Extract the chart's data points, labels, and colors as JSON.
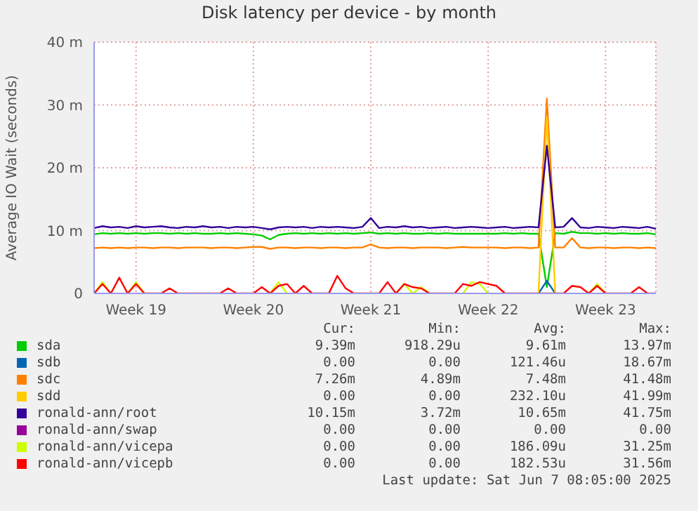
{
  "chart_data": {
    "type": "line",
    "title": "Disk latency per device - by month",
    "ylabel": "Average IO Wait (seconds)",
    "categories": [
      null,
      null,
      null,
      null,
      null,
      "Week 19",
      null,
      null,
      null,
      null,
      null,
      null,
      null,
      null,
      null,
      null,
      null,
      null,
      null,
      "Week 20",
      null,
      null,
      null,
      null,
      null,
      null,
      null,
      null,
      null,
      null,
      null,
      null,
      null,
      "Week 21",
      null,
      null,
      null,
      null,
      null,
      null,
      null,
      null,
      null,
      null,
      null,
      null,
      null,
      "Week 22",
      null,
      null,
      null,
      null,
      null,
      null,
      null,
      null,
      null,
      null,
      null,
      null,
      null,
      "Week 23",
      null,
      null,
      null,
      null,
      null,
      null
    ],
    "ylim": [
      0,
      40
    ],
    "yticks": [
      0,
      {
        "value": 10,
        "label": "10 m"
      },
      {
        "value": 20,
        "label": "20 m"
      },
      {
        "value": 30,
        "label": "30 m"
      },
      {
        "value": 40,
        "label": "40 m"
      }
    ],
    "grid": true,
    "legend": "bottom",
    "marker": "none",
    "line_style": "solid",
    "series": [
      {
        "name": "sda",
        "color": "#00cc00",
        "values": [
          9.4,
          9.6,
          9.5,
          9.6,
          9.5,
          9.6,
          9.5,
          9.6,
          9.6,
          9.5,
          9.6,
          9.5,
          9.6,
          9.5,
          9.5,
          9.6,
          9.5,
          9.6,
          9.5,
          9.4,
          9.2,
          8.6,
          9.3,
          9.5,
          9.6,
          9.5,
          9.6,
          9.5,
          9.6,
          9.5,
          9.6,
          9.5,
          9.6,
          9.7,
          9.5,
          9.6,
          9.5,
          9.6,
          9.5,
          9.5,
          9.6,
          9.5,
          9.6,
          9.5,
          9.5,
          9.5,
          9.5,
          9.5,
          9.5,
          9.6,
          9.5,
          9.6,
          9.5,
          9.5,
          1,
          9.6,
          9.5,
          9.8,
          9.6,
          9.6,
          9.5,
          9.6,
          9.5,
          9.6,
          9.5,
          9.5,
          9.6,
          9.4
        ]
      },
      {
        "name": "sdb",
        "color": "#0066b3",
        "values": [
          null,
          null,
          null,
          null,
          null,
          null,
          null,
          null,
          null,
          null,
          null,
          null,
          null,
          null,
          null,
          null,
          null,
          null,
          null,
          null,
          null,
          null,
          null,
          null,
          null,
          null,
          null,
          null,
          null,
          null,
          null,
          null,
          null,
          null,
          null,
          null,
          null,
          null,
          null,
          null,
          null,
          null,
          null,
          null,
          null,
          null,
          null,
          null,
          null,
          null,
          null,
          null,
          null,
          0,
          2,
          0,
          null,
          null,
          null,
          null,
          null,
          null,
          null,
          null,
          null,
          null,
          null,
          null
        ]
      },
      {
        "name": "sdc",
        "color": "#ff8000",
        "values": [
          7.2,
          7.3,
          7.2,
          7.3,
          7.2,
          7.3,
          7.3,
          7.2,
          7.3,
          7.3,
          7.2,
          7.3,
          7.3,
          7.3,
          7.2,
          7.3,
          7.3,
          7.2,
          7.3,
          7.4,
          7.4,
          7.1,
          7.3,
          7.3,
          7.2,
          7.3,
          7.3,
          7.2,
          7.3,
          7.3,
          7.2,
          7.3,
          7.3,
          7.8,
          7.3,
          7.2,
          7.3,
          7.3,
          7.2,
          7.3,
          7.3,
          7.3,
          7.2,
          7.3,
          7.4,
          7.3,
          7.3,
          7.3,
          7.3,
          7.2,
          7.3,
          7.3,
          7.2,
          7.3,
          31,
          7.3,
          7.3,
          8.8,
          7.3,
          7.2,
          7.3,
          7.3,
          7.2,
          7.3,
          7.3,
          7.2,
          7.3,
          7.2
        ]
      },
      {
        "name": "sdd",
        "color": "#ffcc00",
        "values": [
          null,
          null,
          null,
          null,
          null,
          null,
          null,
          null,
          null,
          null,
          null,
          null,
          null,
          null,
          null,
          null,
          null,
          null,
          null,
          null,
          null,
          null,
          null,
          null,
          null,
          null,
          null,
          null,
          null,
          null,
          null,
          null,
          null,
          null,
          null,
          null,
          null,
          null,
          null,
          null,
          null,
          null,
          null,
          null,
          null,
          null,
          null,
          null,
          null,
          null,
          null,
          null,
          null,
          0,
          28,
          0,
          null,
          null,
          null,
          null,
          null,
          null,
          null,
          null,
          null,
          null,
          null,
          null
        ]
      },
      {
        "name": "ronald-ann/root",
        "color": "#330099",
        "values": [
          10.4,
          10.7,
          10.5,
          10.6,
          10.4,
          10.7,
          10.5,
          10.6,
          10.7,
          10.5,
          10.4,
          10.6,
          10.5,
          10.7,
          10.5,
          10.6,
          10.4,
          10.6,
          10.5,
          10.6,
          10.4,
          10.2,
          10.5,
          10.6,
          10.5,
          10.6,
          10.4,
          10.6,
          10.5,
          10.6,
          10.5,
          10.4,
          10.6,
          12,
          10.4,
          10.6,
          10.5,
          10.7,
          10.5,
          10.6,
          10.4,
          10.5,
          10.6,
          10.4,
          10.5,
          10.6,
          10.5,
          10.4,
          10.5,
          10.6,
          10.4,
          10.5,
          10.6,
          10.5,
          23.5,
          10.5,
          10.6,
          12,
          10.5,
          10.4,
          10.6,
          10.5,
          10.4,
          10.6,
          10.5,
          10.4,
          10.6,
          10.3
        ]
      },
      {
        "name": "ronald-ann/swap",
        "color": "#990099",
        "values": [
          null,
          null,
          null,
          null,
          null,
          null,
          null,
          null,
          null,
          null,
          null,
          null,
          null,
          null,
          null,
          null,
          null,
          null,
          null,
          null,
          null,
          null,
          null,
          null,
          null,
          null,
          null,
          null,
          null,
          null,
          null,
          null,
          null,
          null,
          null,
          null,
          null,
          null,
          null,
          null,
          null,
          null,
          null,
          null,
          null,
          null,
          null,
          null,
          null,
          null,
          null,
          null,
          null,
          null,
          null,
          null,
          null,
          null,
          null,
          null,
          null,
          null,
          null,
          null,
          null,
          null,
          null,
          null
        ]
      },
      {
        "name": "ronald-ann/vicepa",
        "color": "#ccff00",
        "values": [
          0,
          1.8,
          0,
          null,
          0,
          1.8,
          0,
          null,
          null,
          null,
          null,
          null,
          null,
          null,
          null,
          null,
          null,
          null,
          null,
          null,
          null,
          0,
          1.8,
          0,
          null,
          null,
          null,
          null,
          null,
          null,
          null,
          null,
          null,
          null,
          null,
          null,
          0,
          1.5,
          0,
          1,
          0,
          null,
          null,
          null,
          0,
          1.8,
          1.5,
          0,
          null,
          null,
          null,
          null,
          null,
          null,
          null,
          null,
          null,
          null,
          null,
          0,
          1.5,
          0,
          null,
          null,
          null,
          null,
          null,
          null
        ]
      },
      {
        "name": "ronald-ann/vicepb",
        "color": "#ff0000",
        "values": [
          0,
          1.5,
          0,
          2.5,
          0,
          1.5,
          0,
          0,
          0,
          0.8,
          0,
          0,
          0,
          0,
          0,
          0,
          0.8,
          0,
          0,
          0,
          1,
          0,
          1.2,
          1.5,
          0,
          1.2,
          0,
          0,
          0,
          2.8,
          0.8,
          0,
          0,
          0,
          0,
          1.8,
          0,
          1.5,
          1,
          0.8,
          0,
          0,
          0,
          0,
          1.5,
          1.2,
          1.8,
          1.5,
          1.2,
          0,
          0,
          0,
          0,
          0,
          0,
          0,
          0,
          1.2,
          1,
          0,
          1.2,
          0,
          0,
          0,
          0,
          1,
          0,
          0
        ]
      }
    ],
    "annotations": [
      "Cur:",
      "Min:",
      "Avg:",
      "Max:",
      "9.39m",
      "918.29u",
      "9.61m",
      "13.97m",
      "0.00",
      "0.00",
      "121.46u",
      "18.67m",
      "7.26m",
      "4.89m",
      "7.48m",
      "41.48m",
      "0.00",
      "0.00",
      "232.10u",
      "41.99m",
      "10.15m",
      "3.72m",
      "10.65m",
      "41.75m",
      "0.00",
      "0.00",
      "0.00",
      "0.00",
      "0.00",
      "0.00",
      "186.09u",
      "31.25m",
      "0.00",
      "0.00",
      "182.53u",
      "31.56m",
      "Last update:  Sat Jun  7 08:05:00 2025"
    ]
  }
}
